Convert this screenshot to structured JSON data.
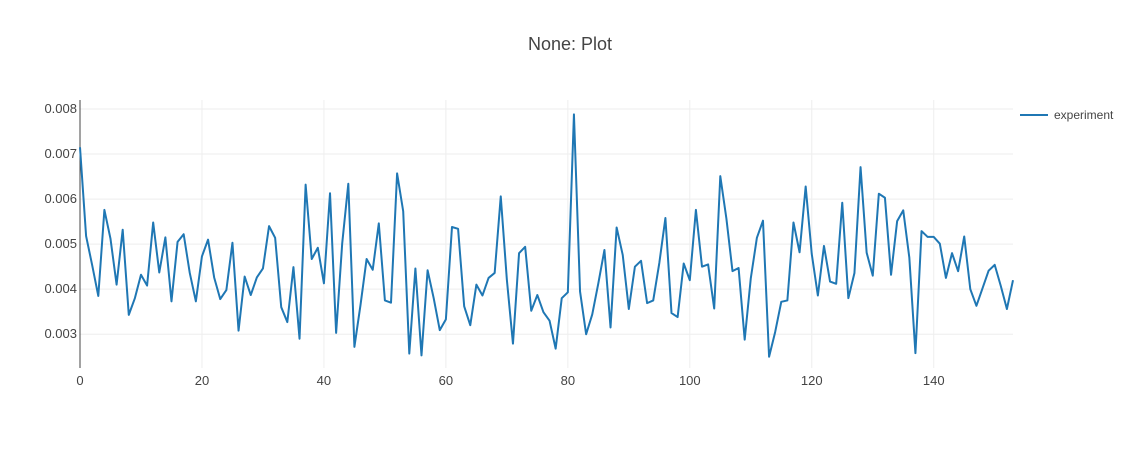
{
  "chart_data": {
    "type": "line",
    "title": "None: Plot",
    "xlabel": "",
    "ylabel": "",
    "xlim": [
      0,
      153
    ],
    "ylim": [
      0.00225,
      0.0082
    ],
    "x_ticks": [
      0,
      20,
      40,
      60,
      80,
      100,
      120,
      140
    ],
    "y_ticks": [
      0.003,
      0.004,
      0.005,
      0.006,
      0.007,
      0.008
    ],
    "grid": true,
    "legend": "top-right",
    "series": [
      {
        "name": "experiment",
        "color": "#1f77b4",
        "x": [
          0,
          1,
          2,
          3,
          4,
          5,
          6,
          7,
          8,
          9,
          10,
          11,
          12,
          13,
          14,
          15,
          16,
          17,
          18,
          19,
          20,
          21,
          22,
          23,
          24,
          25,
          26,
          27,
          28,
          29,
          30,
          31,
          32,
          33,
          34,
          35,
          36,
          37,
          38,
          39,
          40,
          41,
          42,
          43,
          44,
          45,
          46,
          47,
          48,
          49,
          50,
          51,
          52,
          53,
          54,
          55,
          56,
          57,
          58,
          59,
          60,
          61,
          62,
          63,
          64,
          65,
          66,
          67,
          68,
          69,
          70,
          71,
          72,
          73,
          74,
          75,
          76,
          77,
          78,
          79,
          80,
          81,
          82,
          83,
          84,
          85,
          86,
          87,
          88,
          89,
          90,
          91,
          92,
          93,
          94,
          95,
          96,
          97,
          98,
          99,
          100,
          101,
          102,
          103,
          104,
          105,
          106,
          107,
          108,
          109,
          110,
          111,
          112,
          113,
          114,
          115,
          116,
          117,
          118,
          119,
          120,
          121,
          122,
          123,
          124,
          125,
          126,
          127,
          128,
          129,
          130,
          131,
          132,
          133,
          134,
          135,
          136,
          137,
          138,
          139,
          140,
          141,
          142,
          143,
          144,
          145,
          146,
          147,
          148,
          149,
          150,
          151,
          152,
          153
        ],
        "values": [
          0.00715,
          0.00518,
          0.00453,
          0.00385,
          0.00576,
          0.00512,
          0.0041,
          0.00532,
          0.00343,
          0.0038,
          0.00432,
          0.00408,
          0.00548,
          0.00437,
          0.00515,
          0.00373,
          0.00505,
          0.00522,
          0.00436,
          0.00373,
          0.00473,
          0.0051,
          0.00426,
          0.00378,
          0.00398,
          0.00503,
          0.00308,
          0.00428,
          0.00387,
          0.00426,
          0.00446,
          0.0054,
          0.00514,
          0.0036,
          0.00327,
          0.00449,
          0.0029,
          0.00632,
          0.00467,
          0.00492,
          0.00413,
          0.00613,
          0.00303,
          0.00502,
          0.00634,
          0.00272,
          0.00365,
          0.00467,
          0.00443,
          0.00546,
          0.00375,
          0.0037,
          0.00657,
          0.00573,
          0.00257,
          0.00446,
          0.00253,
          0.00442,
          0.0038,
          0.00309,
          0.00333,
          0.00538,
          0.00534,
          0.00362,
          0.0032,
          0.0041,
          0.00386,
          0.00425,
          0.00436,
          0.00606,
          0.00421,
          0.00279,
          0.0048,
          0.00494,
          0.00352,
          0.00387,
          0.00349,
          0.0033,
          0.00268,
          0.0038,
          0.00393,
          0.00788,
          0.00395,
          0.003,
          0.00344,
          0.00413,
          0.00487,
          0.00315,
          0.00537,
          0.00476,
          0.00356,
          0.0045,
          0.00463,
          0.00369,
          0.00375,
          0.00458,
          0.00558,
          0.00347,
          0.00338,
          0.00457,
          0.0042,
          0.00576,
          0.0045,
          0.00455,
          0.00357,
          0.00651,
          0.00557,
          0.0044,
          0.00447,
          0.00288,
          0.00424,
          0.00514,
          0.00552,
          0.0025,
          0.00305,
          0.00372,
          0.00375,
          0.00548,
          0.00482,
          0.00628,
          0.00478,
          0.00386,
          0.00496,
          0.00417,
          0.00412,
          0.00592,
          0.0038,
          0.00436,
          0.00671,
          0.00481,
          0.0043,
          0.00612,
          0.00603,
          0.00432,
          0.00551,
          0.00575,
          0.0047,
          0.00258,
          0.00529,
          0.00516,
          0.00516,
          0.00501,
          0.00425,
          0.0048,
          0.0044,
          0.00517,
          0.004,
          0.00363,
          0.00402,
          0.00441,
          0.00454,
          0.00407,
          0.00356,
          0.0042
        ]
      }
    ]
  }
}
